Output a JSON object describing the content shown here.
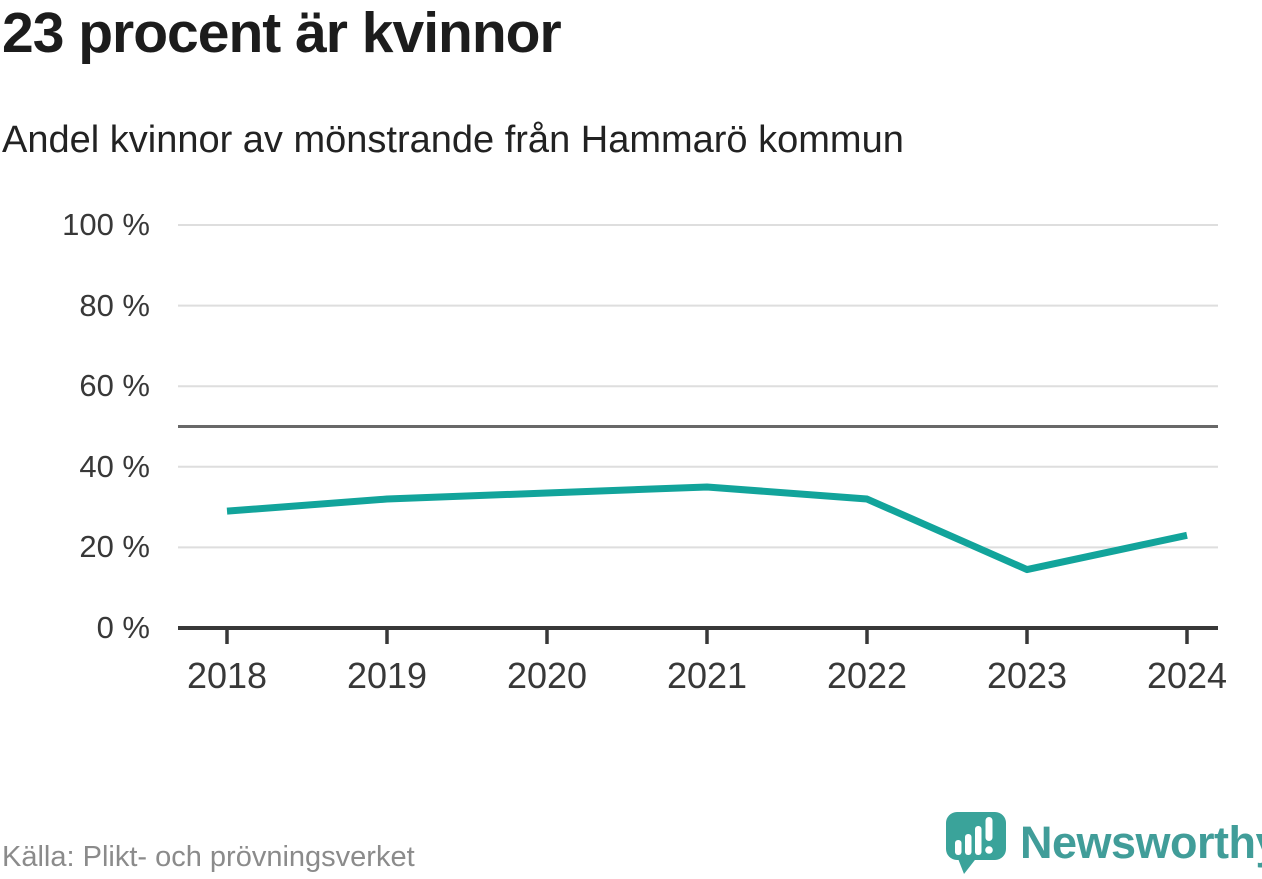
{
  "title": "23 procent är kvinnor",
  "subtitle": "Andel kvinnor av mönstrande från Hammarö kommun",
  "source": "Källa: Plikt- och prövningsverket",
  "brand": {
    "name": "Newsworthy",
    "icon": "speech-bubble-bar-chart-icon",
    "color": "#419d99"
  },
  "colors": {
    "line": "#12a49b",
    "grid": "#dedede",
    "reference": "#686868",
    "axis": "#383838",
    "text": "#1c1c1c",
    "muted": "#8b8b8b"
  },
  "chart_data": {
    "type": "line",
    "x": [
      "2018",
      "2019",
      "2020",
      "2021",
      "2022",
      "2023",
      "2024"
    ],
    "series": [
      {
        "name": "Andel kvinnor av mönstrande",
        "values": [
          29,
          32,
          33.5,
          35,
          32,
          14.5,
          23
        ]
      }
    ],
    "title": "23 procent är kvinnor",
    "subtitle": "Andel kvinnor av mönstrande från Hammarö kommun",
    "xlabel": "",
    "ylabel": "",
    "ylim": [
      0,
      100
    ],
    "yticks": [
      0,
      20,
      40,
      60,
      80,
      100
    ],
    "ytick_labels": [
      "0 %",
      "20 %",
      "40 %",
      "60 %",
      "80 %",
      "100 %"
    ],
    "reference_line": 50,
    "grid": "horizontal",
    "legend": "none"
  }
}
